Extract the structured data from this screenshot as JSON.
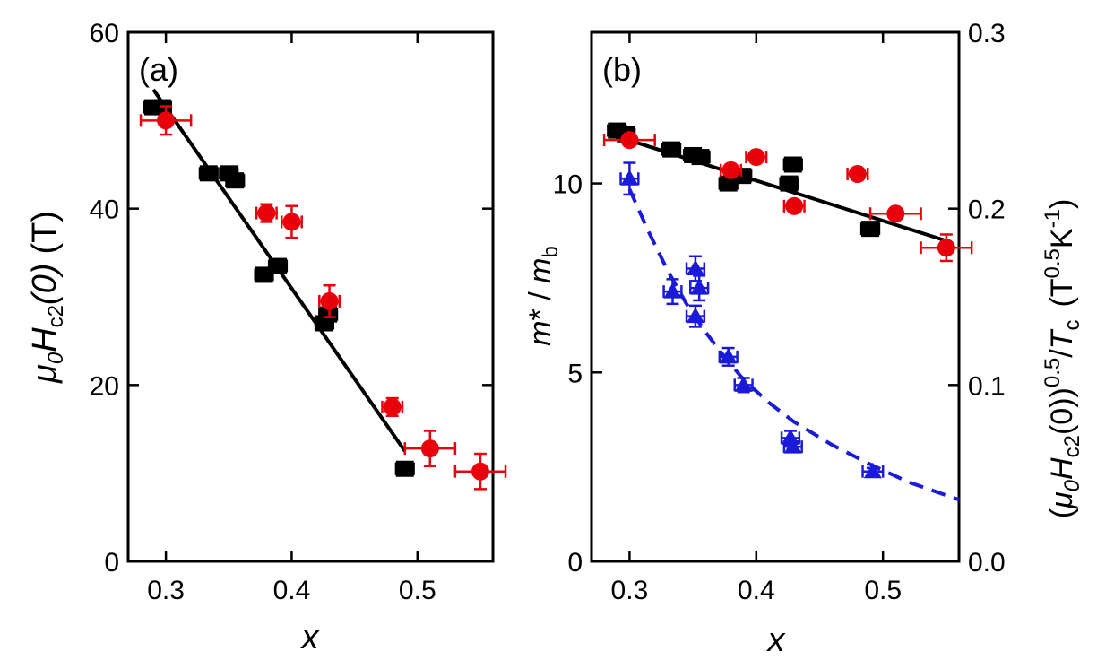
{
  "chart_data": [
    {
      "type": "scatter",
      "panel_label": "(a)",
      "xlabel": "x",
      "ylabel": {
        "mu": "μ",
        "mu_sub": "0",
        "H": "H",
        "H_sub": "c2",
        "arg": "(0)",
        "unit": "(T)"
      },
      "xlim": [
        0.27,
        0.56
      ],
      "ylim": [
        0,
        60
      ],
      "xticks": [
        0.3,
        0.4,
        0.5
      ],
      "xtick_labels": [
        "0.3",
        "0.4",
        "0.5"
      ],
      "yticks": [
        0,
        20,
        40,
        60
      ],
      "ytick_labels": [
        "0",
        "20",
        "40",
        "60"
      ],
      "series": [
        {
          "name": "black squares",
          "marker": "square",
          "color": "#000000",
          "points": [
            {
              "x": 0.29,
              "y": 51.5,
              "xerr": 0.007,
              "yerr": 0
            },
            {
              "x": 0.297,
              "y": 51.5,
              "xerr": 0.007,
              "yerr": 0
            },
            {
              "x": 0.334,
              "y": 44.0,
              "xerr": 0.007,
              "yerr": 0
            },
            {
              "x": 0.35,
              "y": 44.0,
              "xerr": 0.007,
              "yerr": 0
            },
            {
              "x": 0.355,
              "y": 43.2,
              "xerr": 0.007,
              "yerr": 0
            },
            {
              "x": 0.378,
              "y": 32.5,
              "xerr": 0.007,
              "yerr": 0
            },
            {
              "x": 0.389,
              "y": 33.5,
              "xerr": 0.007,
              "yerr": 0
            },
            {
              "x": 0.426,
              "y": 27.0,
              "xerr": 0.007,
              "yerr": 0
            },
            {
              "x": 0.429,
              "y": 28.0,
              "xerr": 0.007,
              "yerr": 0
            },
            {
              "x": 0.49,
              "y": 10.5,
              "xerr": 0.007,
              "yerr": 0
            }
          ]
        },
        {
          "name": "red circles",
          "marker": "circle",
          "color": "#e8000b",
          "points": [
            {
              "x": 0.3,
              "y": 50.0,
              "xerr": 0.02,
              "yerr": 1.6
            },
            {
              "x": 0.38,
              "y": 39.5,
              "xerr": 0.008,
              "yerr": 1.0
            },
            {
              "x": 0.4,
              "y": 38.5,
              "xerr": 0.008,
              "yerr": 1.8
            },
            {
              "x": 0.43,
              "y": 29.5,
              "xerr": 0.008,
              "yerr": 1.8
            },
            {
              "x": 0.48,
              "y": 17.5,
              "xerr": 0.008,
              "yerr": 1.0
            },
            {
              "x": 0.51,
              "y": 12.8,
              "xerr": 0.02,
              "yerr": 2.0
            },
            {
              "x": 0.55,
              "y": 10.2,
              "xerr": 0.02,
              "yerr": 2.0
            }
          ]
        }
      ],
      "fit_lines": [
        {
          "name": "linear fit",
          "style": "solid",
          "color": "#000000",
          "points": [
            [
              0.29,
              53.5
            ],
            [
              0.49,
              12.5
            ]
          ]
        }
      ]
    },
    {
      "type": "scatter",
      "panel_label": "(b)",
      "xlabel": "x",
      "ylabel": {
        "m": "m",
        "star": "*",
        "slash": " / ",
        "mb": "m",
        "mb_sub": "b"
      },
      "y2label": {
        "open": "(",
        "mu": "μ",
        "mu_sub": "0",
        "H": "H",
        "H_sub": "c2",
        "arg": "(0))",
        "exp": "0.5",
        "slash": "/",
        "T": "T",
        "T_sub": "c",
        "unit_open": "(T",
        "unit_exp1": "0.5",
        "unit_K": "K",
        "unit_exp2": "-1",
        "unit_close": ")"
      },
      "xlim": [
        0.27,
        0.56
      ],
      "ylim": [
        0,
        14
      ],
      "y2lim": [
        0,
        0.3
      ],
      "xticks": [
        0.3,
        0.4,
        0.5
      ],
      "xtick_labels": [
        "0.3",
        "0.4",
        "0.5"
      ],
      "yticks": [
        0,
        5,
        10
      ],
      "ytick_labels": [
        "0",
        "5",
        "10"
      ],
      "y2ticks": [
        0.0,
        0.1,
        0.2,
        0.3
      ],
      "y2tick_labels": [
        "0.0",
        "0.1",
        "0.2",
        "0.3"
      ],
      "series": [
        {
          "name": "black squares m*/mb",
          "axis": "left",
          "marker": "square",
          "color": "#000000",
          "points": [
            {
              "x": 0.29,
              "y": 11.4,
              "xerr": 0.007,
              "yerr": 0
            },
            {
              "x": 0.297,
              "y": 11.3,
              "xerr": 0.007,
              "yerr": 0
            },
            {
              "x": 0.333,
              "y": 10.9,
              "xerr": 0.007,
              "yerr": 0
            },
            {
              "x": 0.35,
              "y": 10.75,
              "xerr": 0.007,
              "yerr": 0
            },
            {
              "x": 0.356,
              "y": 10.7,
              "xerr": 0.007,
              "yerr": 0
            },
            {
              "x": 0.378,
              "y": 10.0,
              "xerr": 0.007,
              "yerr": 0
            },
            {
              "x": 0.389,
              "y": 10.2,
              "xerr": 0.007,
              "yerr": 0
            },
            {
              "x": 0.426,
              "y": 10.0,
              "xerr": 0.007,
              "yerr": 0
            },
            {
              "x": 0.429,
              "y": 10.5,
              "xerr": 0.007,
              "yerr": 0
            },
            {
              "x": 0.49,
              "y": 8.8,
              "xerr": 0.007,
              "yerr": 0
            }
          ]
        },
        {
          "name": "red circles m*/mb",
          "axis": "left",
          "marker": "circle",
          "color": "#e8000b",
          "points": [
            {
              "x": 0.3,
              "y": 11.15,
              "xerr": 0.02,
              "yerr": 0
            },
            {
              "x": 0.38,
              "y": 10.35,
              "xerr": 0.008,
              "yerr": 0
            },
            {
              "x": 0.4,
              "y": 10.7,
              "xerr": 0.008,
              "yerr": 0
            },
            {
              "x": 0.43,
              "y": 9.4,
              "xerr": 0.008,
              "yerr": 0
            },
            {
              "x": 0.48,
              "y": 10.25,
              "xerr": 0.008,
              "yerr": 0
            },
            {
              "x": 0.51,
              "y": 9.2,
              "xerr": 0.02,
              "yerr": 0
            },
            {
              "x": 0.55,
              "y": 8.3,
              "xerr": 0.02,
              "yerr": 0.35
            }
          ]
        },
        {
          "name": "blue triangles (μ0Hc2(0))^0.5/Tc",
          "axis": "right",
          "marker": "triangle",
          "color": "#1a1ad8",
          "points": [
            {
              "x": 0.3,
              "y": 0.217,
              "xerr": 0.007,
              "yerr": 0.009
            },
            {
              "x": 0.334,
              "y": 0.153,
              "xerr": 0.007,
              "yerr": 0.007
            },
            {
              "x": 0.352,
              "y": 0.166,
              "xerr": 0.007,
              "yerr": 0.007
            },
            {
              "x": 0.355,
              "y": 0.155,
              "xerr": 0.007,
              "yerr": 0.007
            },
            {
              "x": 0.352,
              "y": 0.139,
              "xerr": 0.007,
              "yerr": 0.006
            },
            {
              "x": 0.378,
              "y": 0.116,
              "xerr": 0.007,
              "yerr": 0.005
            },
            {
              "x": 0.39,
              "y": 0.1,
              "xerr": 0.007,
              "yerr": 0.004
            },
            {
              "x": 0.427,
              "y": 0.07,
              "xerr": 0.007,
              "yerr": 0.004
            },
            {
              "x": 0.429,
              "y": 0.065,
              "xerr": 0.007,
              "yerr": 0.003
            },
            {
              "x": 0.492,
              "y": 0.051,
              "xerr": 0.008,
              "yerr": 0.002
            }
          ]
        }
      ],
      "fit_lines": [
        {
          "name": "linear fit m*/mb",
          "axis": "left",
          "style": "solid",
          "color": "#000000",
          "points": [
            [
              0.285,
              11.3
            ],
            [
              0.553,
              8.45
            ]
          ]
        },
        {
          "name": "guide (μ0Hc2(0))^0.5/Tc",
          "axis": "right",
          "style": "dashed",
          "color": "#1a1ad8",
          "points": [
            [
              0.3,
              0.211
            ],
            [
              0.315,
              0.187
            ],
            [
              0.33,
              0.165
            ],
            [
              0.345,
              0.146
            ],
            [
              0.36,
              0.13
            ],
            [
              0.375,
              0.116
            ],
            [
              0.39,
              0.103
            ],
            [
              0.41,
              0.09
            ],
            [
              0.43,
              0.079
            ],
            [
              0.46,
              0.066
            ],
            [
              0.49,
              0.055
            ],
            [
              0.52,
              0.045
            ],
            [
              0.56,
              0.035
            ]
          ]
        }
      ]
    }
  ]
}
